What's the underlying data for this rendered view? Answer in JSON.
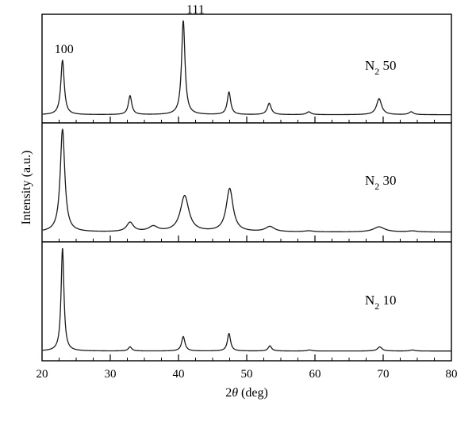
{
  "chart_data": {
    "type": "line",
    "xlabel_prefix": "2",
    "xlabel_symbol": "θ",
    "xlabel_suffix": " (deg)",
    "ylabel": "Intensity (a.u.)",
    "xlim": [
      20,
      80
    ],
    "xticks": [
      20,
      30,
      40,
      50,
      60,
      70,
      80
    ],
    "minor_step": 2.5,
    "grid": false,
    "panels": [
      {
        "label_main": "N",
        "label_sub": "2",
        "label_value": " 50",
        "baseline": 0.05,
        "peaks": [
          {
            "x": 23.0,
            "h": 0.58,
            "w": 0.3
          },
          {
            "x": 32.9,
            "h": 0.2,
            "w": 0.3
          },
          {
            "x": 40.7,
            "h": 1.0,
            "w": 0.3
          },
          {
            "x": 47.4,
            "h": 0.24,
            "w": 0.3
          },
          {
            "x": 53.3,
            "h": 0.12,
            "w": 0.35
          },
          {
            "x": 59.1,
            "h": 0.03,
            "w": 0.4
          },
          {
            "x": 69.4,
            "h": 0.17,
            "w": 0.45
          },
          {
            "x": 74.1,
            "h": 0.03,
            "w": 0.4
          }
        ],
        "annotations": [
          {
            "text": "100",
            "x": 23.0
          },
          {
            "text": "111",
            "x": 40.7
          }
        ]
      },
      {
        "label_main": "N",
        "label_sub": "2",
        "label_value": " 30",
        "baseline": 0.06,
        "peaks": [
          {
            "x": 23.0,
            "h": 1.0,
            "w": 0.4
          },
          {
            "x": 32.9,
            "h": 0.09,
            "w": 0.6
          },
          {
            "x": 36.3,
            "h": 0.05,
            "w": 0.8
          },
          {
            "x": 40.9,
            "h": 0.35,
            "w": 0.75
          },
          {
            "x": 47.5,
            "h": 0.42,
            "w": 0.6
          },
          {
            "x": 53.4,
            "h": 0.05,
            "w": 0.8
          },
          {
            "x": 59.1,
            "h": 0.01,
            "w": 0.8
          },
          {
            "x": 69.4,
            "h": 0.05,
            "w": 1.0
          },
          {
            "x": 74.3,
            "h": 0.01,
            "w": 0.8
          }
        ],
        "annotations": []
      },
      {
        "label_main": "N",
        "label_sub": "2",
        "label_value": " 10",
        "baseline": 0.06,
        "peaks": [
          {
            "x": 23.0,
            "h": 1.0,
            "w": 0.25
          },
          {
            "x": 32.9,
            "h": 0.04,
            "w": 0.3
          },
          {
            "x": 40.7,
            "h": 0.14,
            "w": 0.3
          },
          {
            "x": 47.4,
            "h": 0.17,
            "w": 0.28
          },
          {
            "x": 53.4,
            "h": 0.05,
            "w": 0.3
          },
          {
            "x": 59.2,
            "h": 0.01,
            "w": 0.4
          },
          {
            "x": 69.5,
            "h": 0.04,
            "w": 0.4
          },
          {
            "x": 74.3,
            "h": 0.01,
            "w": 0.4
          }
        ],
        "annotations": []
      }
    ]
  }
}
